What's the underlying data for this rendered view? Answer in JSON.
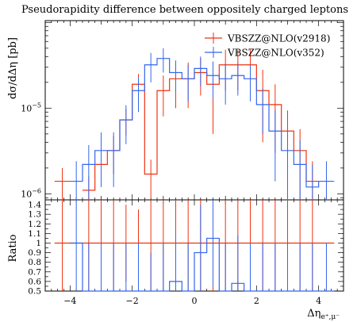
{
  "chart_data": {
    "type": "step-histogram-with-ratio",
    "title": "Pseudorapidity difference between oppositely charged leptons",
    "ylabel": "dσ/dΔη [pb]",
    "xlabel": "Δη",
    "xlabel_sub": "e⁺,μ⁻",
    "ratio_ylabel": "Ratio",
    "legend_position": "top-right",
    "xlim": [
      -4.8,
      4.8
    ],
    "x_ticks": [
      -4,
      -2,
      0,
      2,
      4
    ],
    "x_tick_labels": [
      "−4",
      "−2",
      "0",
      "2",
      "4"
    ],
    "y_scale": "log",
    "ylim": [
      8.5e-07,
      0.000105
    ],
    "y_major_ticks": [
      {
        "value": 1e-06,
        "base": "10",
        "exp": "−6"
      },
      {
        "value": 1e-05,
        "base": "10",
        "exp": "−5"
      }
    ],
    "ratio_ylim": [
      0.5,
      1.45
    ],
    "ratio_ticks": [
      0.5,
      0.6,
      0.7,
      0.8,
      0.9,
      1.0,
      1.1,
      1.2,
      1.3,
      1.4
    ],
    "ratio_tick_labels": [
      "0.5",
      "0.6",
      "0.7",
      "0.8",
      "0.9",
      "1",
      "1.1",
      "1.2",
      "1.3",
      "1.4"
    ],
    "bin_edges": [
      -4.5,
      -4.0,
      -3.6,
      -3.2,
      -2.8,
      -2.4,
      -2.0,
      -1.6,
      -1.2,
      -0.8,
      -0.4,
      0.0,
      0.4,
      0.8,
      1.2,
      1.6,
      2.0,
      2.4,
      2.8,
      3.2,
      3.6,
      4.0,
      4.5
    ],
    "series": [
      {
        "name": "VBSZZ@NLO(v2918)",
        "color": "#ee3311",
        "values": [
          1.4e-06,
          0,
          1.1e-06,
          2.2e-06,
          3.2e-06,
          7.3e-06,
          1.9e-05,
          1.7e-06,
          1.6e-05,
          2.2e-05,
          2.2e-05,
          2.6e-05,
          1.9e-05,
          3.2e-05,
          3.2e-05,
          3.2e-05,
          1.6e-05,
          1.1e-05,
          5.4e-06,
          3.2e-06,
          1.4e-06,
          0
        ],
        "errors": [
          6e-07,
          0,
          5e-07,
          1e-06,
          1.5e-06,
          2.5e-06,
          6e-06,
          8e-07,
          8e-06,
          1.2e-05,
          1.2e-05,
          1.2e-05,
          1.4e-05,
          1.6e-05,
          1.6e-05,
          1.6e-05,
          1.2e-05,
          8e-06,
          4e-06,
          2.5e-06,
          1e-06,
          0
        ],
        "ratio": [
          1.0,
          1.0,
          1.0,
          1.0,
          1.0,
          1.0,
          1.0,
          1.0,
          1.0,
          1.0,
          1.0,
          1.0,
          1.0,
          1.0,
          1.0,
          1.0,
          1.0,
          1.0,
          1.0,
          1.0,
          1.0,
          1.0
        ],
        "ratio_errors": [
          0.5,
          0,
          0.6,
          0.5,
          0.5,
          0.4,
          0.35,
          0.5,
          0.5,
          0.55,
          0.5,
          0.55,
          0.6,
          0.5,
          0.5,
          0.5,
          0.6,
          0.6,
          0.6,
          0.6,
          0.6,
          0
        ]
      },
      {
        "name": "VBSZZ@NLO(v352)",
        "color": "#3366ee",
        "values": [
          0,
          1.4e-06,
          2.2e-06,
          3.2e-06,
          3.2e-06,
          7.3e-06,
          1.6e-05,
          3.2e-05,
          3.8e-05,
          2.6e-05,
          2.2e-05,
          2.9e-05,
          2.4e-05,
          2.2e-05,
          2.4e-05,
          2.2e-05,
          1.1e-05,
          5.4e-06,
          3.2e-06,
          2.2e-06,
          1.2e-06,
          1.4e-06
        ],
        "errors": [
          0,
          1e-06,
          1.5e-06,
          2e-06,
          2e-06,
          3.5e-06,
          7e-06,
          1.2e-05,
          1.2e-05,
          1e-05,
          1e-05,
          1.1e-05,
          1.1e-05,
          1.1e-05,
          1e-05,
          1e-05,
          6e-06,
          4e-06,
          2.5e-06,
          2e-06,
          1e-06,
          1e-06
        ],
        "ratio": [
          0,
          1.0,
          0.5,
          0.5,
          0.5,
          0.5,
          0.5,
          0.5,
          0.5,
          0.6,
          0.5,
          0.9,
          1.05,
          0.5,
          0.58,
          0.5,
          0.5,
          0.5,
          0.5,
          0.5,
          0.5,
          0.5
        ],
        "ratio_errors": [
          0,
          0.6,
          0.5,
          0.5,
          0.5,
          0.5,
          0.5,
          0.4,
          0.5,
          0.5,
          0.5,
          0.5,
          0.5,
          0.5,
          0.5,
          0.5,
          0.5,
          0.5,
          0.5,
          0.5,
          0.5,
          0.5
        ]
      }
    ]
  }
}
